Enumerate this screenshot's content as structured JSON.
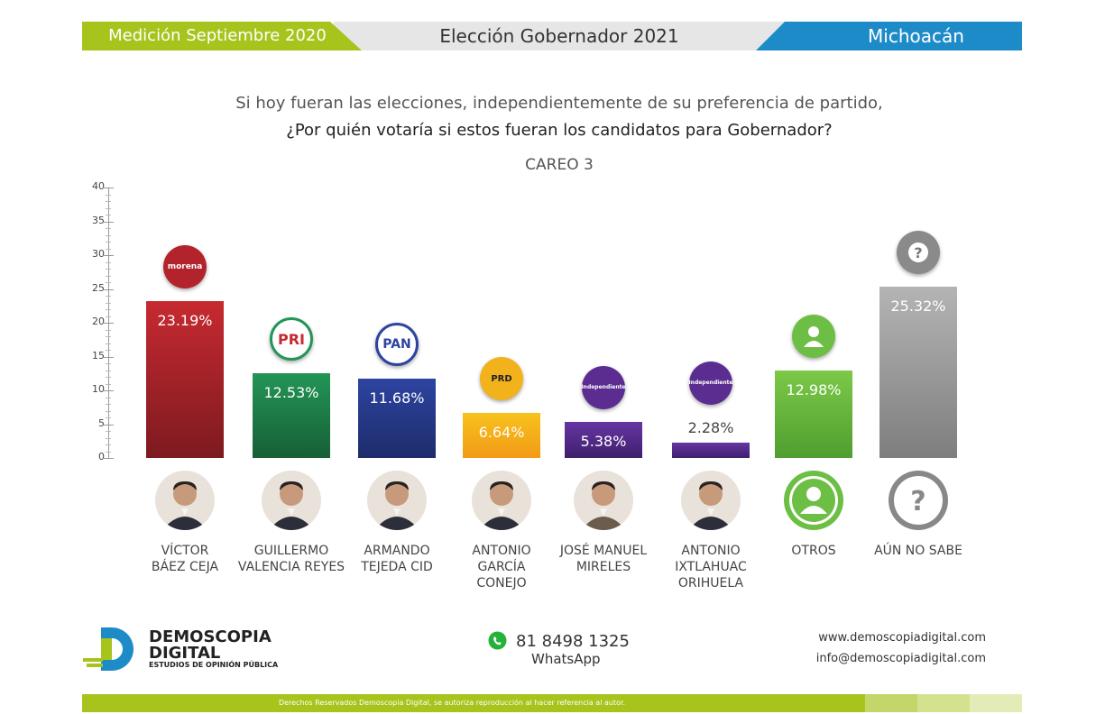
{
  "header": {
    "left": "Medición Septiembre 2020",
    "center": "Elección Gobernador 2021",
    "right": "Michoacán"
  },
  "question": {
    "line1": "Si hoy fueran las elecciones, independientemente de su preferencia de partido,",
    "line2": "¿Por quién votaría si estos fueran los candidatos para Gobernador?",
    "subtitle": "CAREO 3"
  },
  "colors": {
    "header_green": "#a6c41c",
    "header_blue": "#1e8bc9",
    "morena": "#b3232c",
    "pri": "#1f8a4a",
    "pan": "#263b8f",
    "prd": "#f2b21c",
    "independiente": "#5b2d91",
    "otros": "#6cbf44",
    "no_sabe": "#9e9e9e"
  },
  "chart_data": {
    "type": "bar",
    "title": "CAREO 3",
    "ylim": [
      0,
      40
    ],
    "yticks": [
      "0",
      "5",
      "10",
      "15",
      "20",
      "25",
      "30",
      "35",
      "40"
    ],
    "categories": [
      "VÍCTOR BÁEZ CEJA",
      "GUILLERMO VALENCIA REYES",
      "ARMANDO TEJEDA CID",
      "ANTONIO GARCÍA CONEJO",
      "JOSÉ MANUEL MIRELES",
      "ANTONIO IXTLAHUAC ORIHUELA",
      "OTROS",
      "AÚN NO SABE"
    ],
    "values": [
      23.19,
      12.53,
      11.68,
      6.64,
      5.38,
      2.28,
      12.98,
      25.32
    ],
    "labels": [
      "23.19%",
      "12.53%",
      "11.68%",
      "6.64%",
      "5.38%",
      "2.28%",
      "12.98%",
      "25.32%"
    ],
    "parties": [
      "morena",
      "PRI",
      "PAN",
      "PRD",
      "Independiente",
      "Independiente",
      "otros-icon",
      "question-icon"
    ],
    "grid": false,
    "legend": "none"
  },
  "candidates": [
    {
      "name": "VÍCTOR\nBÁEZ CEJA",
      "party": "morena"
    },
    {
      "name": "GUILLERMO\nVALENCIA REYES",
      "party": "PRI"
    },
    {
      "name": "ARMANDO\nTEJEDA CID",
      "party": "PAN"
    },
    {
      "name": "ANTONIO\nGARCÍA\nCONEJO",
      "party": "PRD"
    },
    {
      "name": "JOSÉ MANUEL\nMIRELES",
      "party": "Independiente"
    },
    {
      "name": "ANTONIO\nIXTLAHUAC\nORIHUELA",
      "party": "Independiente"
    },
    {
      "name": "OTROS",
      "party": ""
    },
    {
      "name": "AÚN NO SABE",
      "party": ""
    }
  ],
  "footer": {
    "brand_line1": "DEMOSCOPIA",
    "brand_line2": "DIGITAL",
    "brand_tagline": "ESTUDIOS DE OPINIÓN PÚBLICA",
    "phone": "81 8498 1325",
    "phone_label": "WhatsApp",
    "website": "www.demoscopiadigital.com",
    "email": "info@demoscopiadigital.com",
    "copyright": "Derechos Reservados Demoscopia Digital, se autoriza reproducción al hacer referencia al autor."
  }
}
